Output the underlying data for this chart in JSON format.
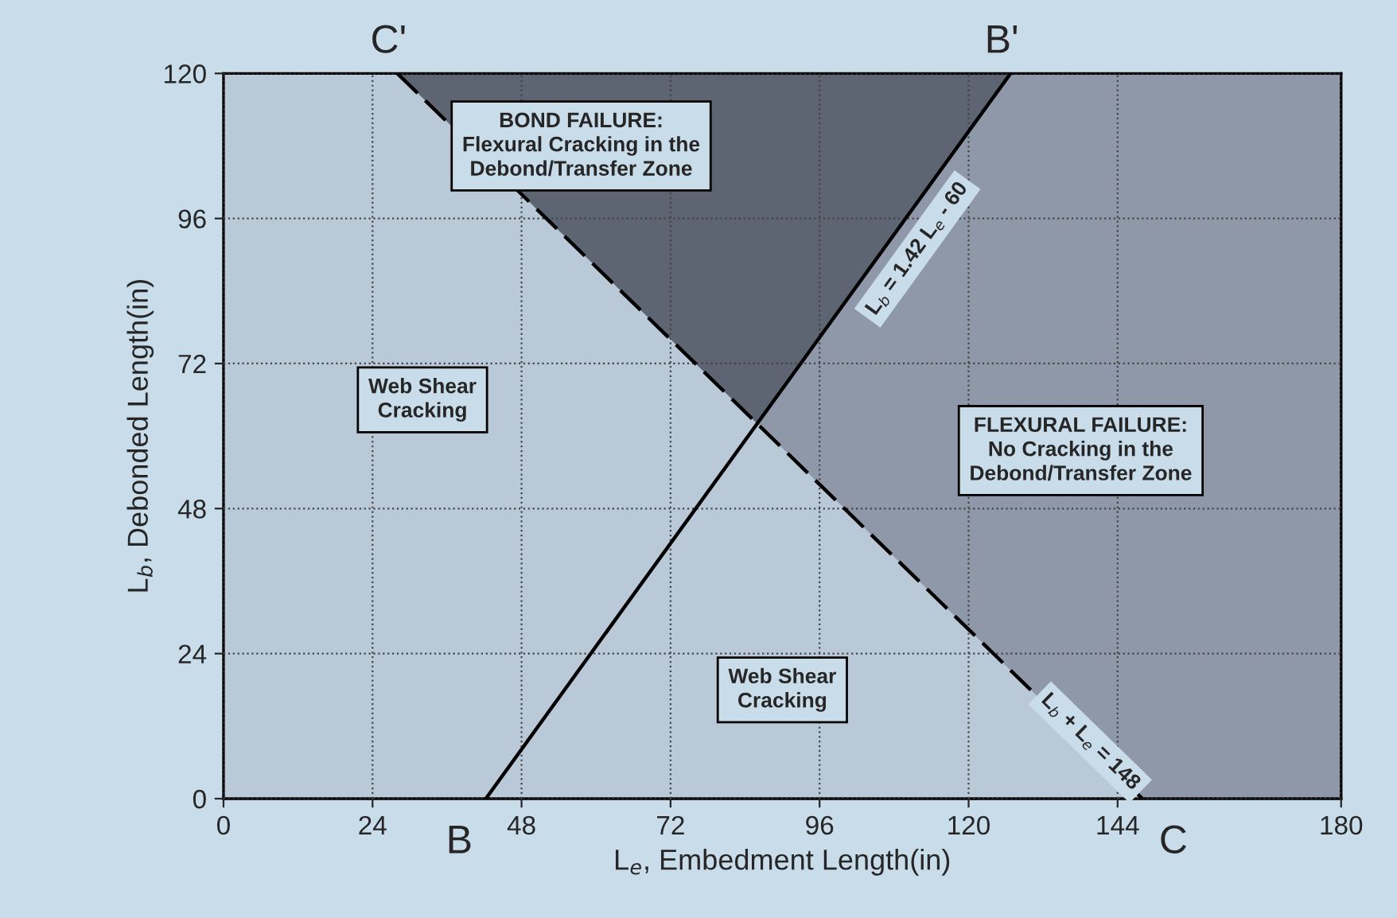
{
  "chart_data": {
    "type": "line",
    "xlabel": "L$_{e}$, Embedment Length(in)",
    "ylabel": "L$_{b}$, Debonded Length(in)",
    "xlim": [
      0,
      180
    ],
    "ylim": [
      0,
      120
    ],
    "xticks": [
      0,
      24,
      48,
      72,
      96,
      120,
      144,
      180
    ],
    "yticks": [
      0,
      24,
      48,
      72,
      96,
      120
    ],
    "grid": true,
    "legend": false,
    "marker": "none",
    "series": [
      {
        "color": "#000000",
        "line_style": "solid",
        "x": [
          42.25,
          126.76
        ],
        "values": [
          0,
          120
        ]
      },
      {
        "color": "#000000",
        "line_style": "dashed",
        "x": [
          28,
          148
        ],
        "values": [
          120,
          0
        ]
      }
    ],
    "annotations": [
      {
        "text": "B",
        "x": 42.25,
        "y": 0
      },
      {
        "text": "B'",
        "x": 126.76,
        "y": 120
      },
      {
        "text": "C",
        "x": 148,
        "y": 0
      },
      {
        "text": "C'",
        "x": 28,
        "y": 120
      },
      "Web Shear\nCracking",
      "BOND FAILURE:\nFlexural Cracking in the\nDebond/Transfer Zone",
      "FLEXURAL FAILURE:\nNo Cracking in the\nDebond/Transfer Zone",
      "Web Shear\nCracking",
      "L$_{b}$ = 1.42 L$_{e}$ - 60",
      "L$_{b}$ + L$_{e}$ = 148"
    ]
  }
}
